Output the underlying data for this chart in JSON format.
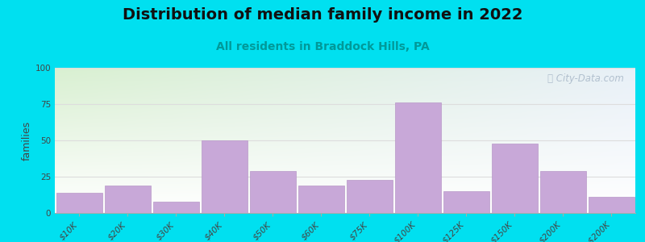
{
  "title": "Distribution of median family income in 2022",
  "subtitle": "All residents in Braddock Hills, PA",
  "ylabel": "families",
  "categories": [
    "$10K",
    "$20K",
    "$30K",
    "$40K",
    "$50K",
    "$60K",
    "$75K",
    "$100K",
    "$125K",
    "$150K",
    "$200K",
    "> $200K"
  ],
  "values": [
    14,
    19,
    8,
    50,
    29,
    19,
    23,
    76,
    15,
    48,
    29,
    11
  ],
  "bar_color": "#c8a8d8",
  "bar_edge_color": "#b898c8",
  "ylim": [
    0,
    100
  ],
  "yticks": [
    0,
    25,
    50,
    75,
    100
  ],
  "background_outer": "#00e0f0",
  "background_top_left": "#d8efd0",
  "background_top_right": "#e8f0f8",
  "background_bottom": "#ffffff",
  "grid_color": "#dddddd",
  "title_fontsize": 14,
  "subtitle_fontsize": 10,
  "ylabel_fontsize": 9,
  "tick_fontsize": 7.5,
  "watermark_text": "ⓘ City-Data.com",
  "watermark_color": "#a8b8c8",
  "title_color": "#111111",
  "subtitle_color": "#009999"
}
